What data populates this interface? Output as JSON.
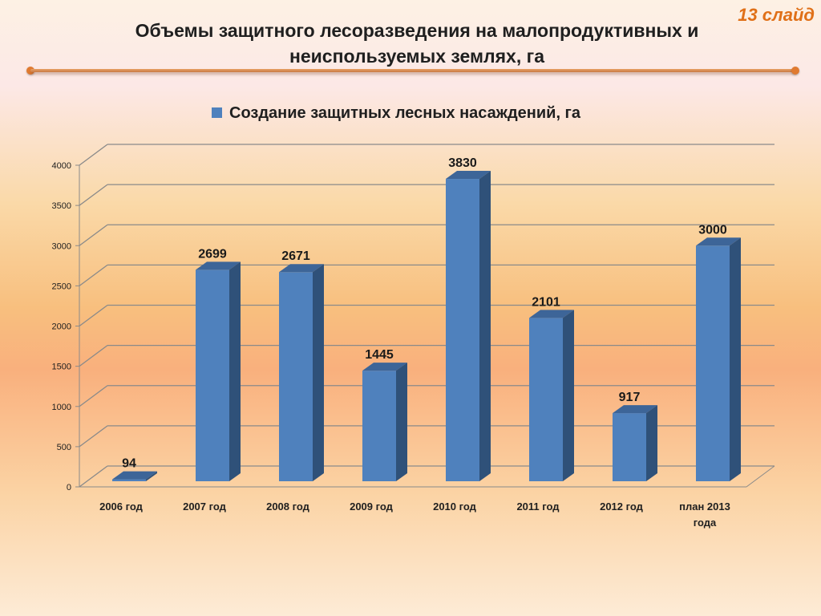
{
  "slide": {
    "number_label": "13 слайд"
  },
  "title": {
    "line1": "Объемы защитного лесоразведения на малопродуктивных и",
    "line2": "неиспользуемых землях, га"
  },
  "chart_data": {
    "type": "bar",
    "categories": [
      "2006 год",
      "2007 год",
      "2008 год",
      "2009 год",
      "2010 год",
      "2011 год",
      "2012 год",
      "план 2013 года"
    ],
    "category_lines": [
      [
        "2006 год"
      ],
      [
        "2007 год"
      ],
      [
        "2008 год"
      ],
      [
        "2009 год"
      ],
      [
        "2010 год"
      ],
      [
        "2011 год"
      ],
      [
        "2012 год"
      ],
      [
        "план 2013",
        "года"
      ]
    ],
    "series": [
      {
        "name": "Создание защитных лесных насаждений, га",
        "values": [
          94,
          2699,
          2671,
          1445,
          3830,
          2101,
          917,
          3000
        ],
        "color": "#4f81bd"
      }
    ],
    "ylim": [
      0,
      4000
    ],
    "yticks": [
      0,
      500,
      1000,
      1500,
      2000,
      2500,
      3000,
      3500,
      4000
    ],
    "grid": true,
    "legend_position": "top",
    "style": "3d-column"
  }
}
